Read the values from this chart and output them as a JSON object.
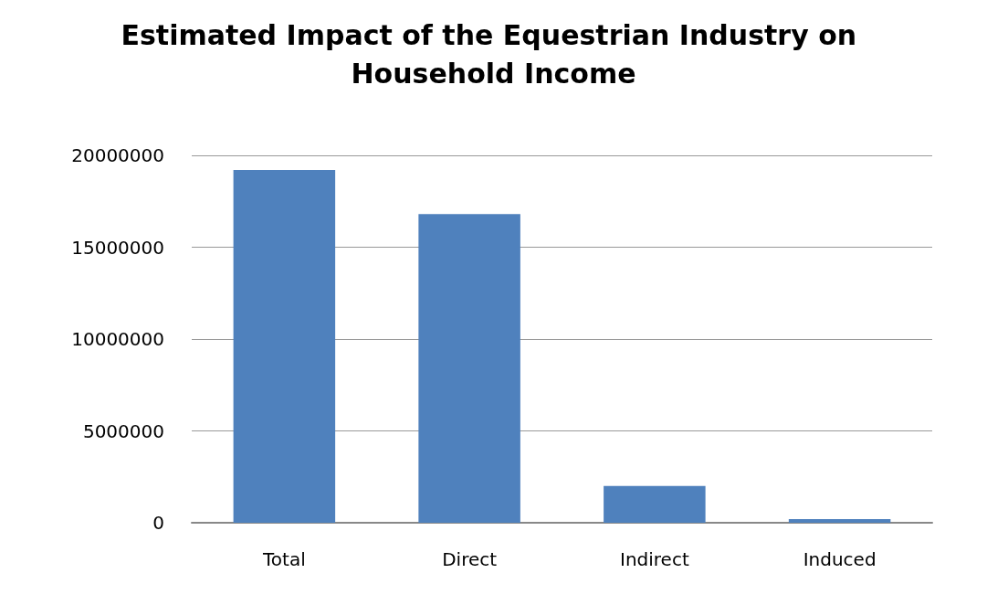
{
  "chart_data": {
    "type": "bar",
    "title": "Estimated Impact of the Equestrian Industry on Household Income",
    "categories": [
      "Total",
      "Direct",
      "Indirect",
      "Induced"
    ],
    "values": [
      19200000,
      16800000,
      2000000,
      200000
    ],
    "color": "#4f81bd",
    "ylim": [
      0,
      20000000
    ],
    "yticks": [
      0,
      5000000,
      10000000,
      15000000,
      20000000
    ],
    "grid": "y"
  }
}
